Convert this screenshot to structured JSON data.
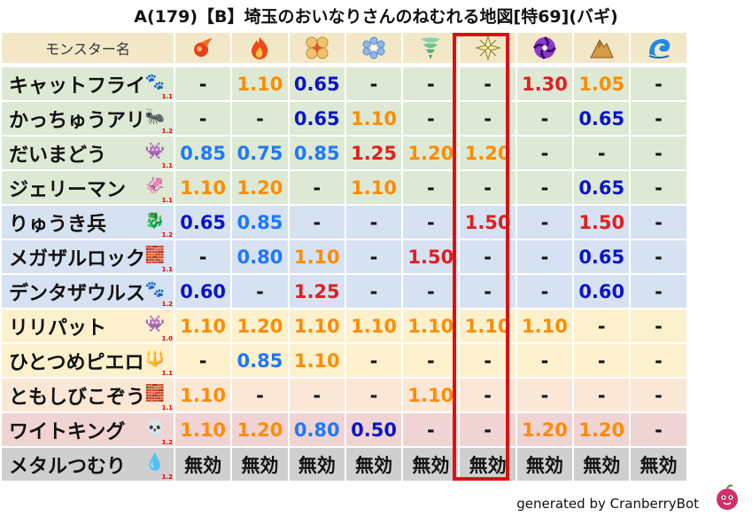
{
  "title": "A(179)【B】埼玉のおいなりさんのねむれる地図[特69](バギ)",
  "header": {
    "name_label": "モンスター名",
    "elements": [
      "fire-spirit-icon",
      "flame-icon",
      "explosion-icon",
      "ice-icon",
      "wind-icon",
      "lightning-icon",
      "darkness-icon",
      "earth-icon",
      "water-icon"
    ]
  },
  "rows": [
    {
      "name": "キャットフライ",
      "icon": "paw-icon",
      "icon_char": "🐾",
      "level": "1.1",
      "bg": "green",
      "values": [
        "-",
        "1.10",
        "0.65",
        "-",
        "-",
        "-",
        "1.30",
        "1.05",
        "-"
      ],
      "colors": [
        "dash",
        "orange",
        "navy",
        "dash",
        "dash",
        "dash",
        "red",
        "orange",
        "dash"
      ]
    },
    {
      "name": "かっちゅうアリ",
      "icon": "insect-icon",
      "icon_char": "🐜",
      "level": "1.2",
      "bg": "green",
      "values": [
        "-",
        "-",
        "0.65",
        "1.10",
        "-",
        "-",
        "-",
        "0.65",
        "-"
      ],
      "colors": [
        "dash",
        "dash",
        "navy",
        "orange",
        "dash",
        "dash",
        "dash",
        "navy",
        "dash"
      ]
    },
    {
      "name": "だいまどう",
      "icon": "slime-icon",
      "icon_char": "👾",
      "level": "1.1",
      "bg": "green",
      "values": [
        "0.85",
        "0.75",
        "0.85",
        "1.25",
        "1.20",
        "1.20",
        "-",
        "-",
        "-"
      ],
      "colors": [
        "blue",
        "blue",
        "blue",
        "red",
        "orange",
        "orange",
        "dash",
        "dash",
        "dash"
      ]
    },
    {
      "name": "ジェリーマン",
      "icon": "jelly-icon",
      "icon_char": "🦑",
      "level": "1.1",
      "bg": "green",
      "values": [
        "1.10",
        "1.20",
        "-",
        "1.10",
        "-",
        "-",
        "-",
        "0.65",
        "-"
      ],
      "colors": [
        "orange",
        "orange",
        "dash",
        "orange",
        "dash",
        "dash",
        "dash",
        "navy",
        "dash"
      ]
    },
    {
      "name": "りゅうき兵",
      "icon": "dragon-icon",
      "icon_char": "🐉",
      "level": "1.2",
      "bg": "blue",
      "values": [
        "0.65",
        "0.85",
        "-",
        "-",
        "-",
        "1.50",
        "-",
        "1.50",
        "-"
      ],
      "colors": [
        "navy",
        "blue",
        "dash",
        "dash",
        "dash",
        "red",
        "dash",
        "red",
        "dash"
      ]
    },
    {
      "name": "メガザルロック",
      "icon": "wall-icon",
      "icon_char": "🧱",
      "level": "1.1",
      "bg": "blue",
      "values": [
        "-",
        "0.80",
        "1.10",
        "-",
        "1.50",
        "-",
        "-",
        "0.65",
        "-"
      ],
      "colors": [
        "dash",
        "blue",
        "orange",
        "dash",
        "red",
        "dash",
        "dash",
        "navy",
        "dash"
      ]
    },
    {
      "name": "デンタザウルス",
      "icon": "paw-icon",
      "icon_char": "🐾",
      "level": "1.2",
      "bg": "blue",
      "values": [
        "0.60",
        "-",
        "1.25",
        "-",
        "-",
        "-",
        "-",
        "0.60",
        "-"
      ],
      "colors": [
        "navy",
        "dash",
        "red",
        "dash",
        "dash",
        "dash",
        "dash",
        "navy",
        "dash"
      ]
    },
    {
      "name": "リリパット",
      "icon": "slime-icon",
      "icon_char": "👾",
      "level": "1.0",
      "bg": "yellow",
      "values": [
        "1.10",
        "1.20",
        "1.10",
        "1.10",
        "1.10",
        "1.10",
        "1.10",
        "-",
        "-"
      ],
      "colors": [
        "orange",
        "orange",
        "orange",
        "orange",
        "orange",
        "orange",
        "orange",
        "dash",
        "dash"
      ]
    },
    {
      "name": "ひとつめピエロ",
      "icon": "trident-icon",
      "icon_char": "🔱",
      "level": "1.1",
      "bg": "yellow",
      "values": [
        "-",
        "0.85",
        "1.10",
        "-",
        "-",
        "-",
        "-",
        "-",
        "-"
      ],
      "colors": [
        "dash",
        "blue",
        "orange",
        "dash",
        "dash",
        "dash",
        "dash",
        "dash",
        "dash"
      ]
    },
    {
      "name": "ともしびこぞう",
      "icon": "wall-icon",
      "icon_char": "🧱",
      "level": "1.1",
      "bg": "peach",
      "values": [
        "1.10",
        "-",
        "-",
        "-",
        "1.10",
        "-",
        "-",
        "-",
        "-"
      ],
      "colors": [
        "orange",
        "dash",
        "dash",
        "dash",
        "orange",
        "dash",
        "dash",
        "dash",
        "dash"
      ]
    },
    {
      "name": "ワイトキング",
      "icon": "skull-icon",
      "icon_char": "💀",
      "level": "1.2",
      "bg": "pink",
      "values": [
        "1.10",
        "1.20",
        "0.80",
        "0.50",
        "-",
        "-",
        "1.20",
        "1.20",
        "-"
      ],
      "colors": [
        "orange",
        "orange",
        "blue",
        "navy",
        "dash",
        "dash",
        "orange",
        "orange",
        "dash"
      ]
    },
    {
      "name": "メタルつむり",
      "icon": "metal-slime-icon",
      "icon_char": "💧",
      "level": "1.2",
      "bg": "gray",
      "values": [
        "無効",
        "無効",
        "無効",
        "無効",
        "無効",
        "無効",
        "無効",
        "無効",
        "無効"
      ],
      "colors": [
        "black",
        "black",
        "black",
        "black",
        "black",
        "black",
        "black",
        "black",
        "black"
      ]
    }
  ],
  "footer": {
    "text": "generated by CranberryBot"
  }
}
